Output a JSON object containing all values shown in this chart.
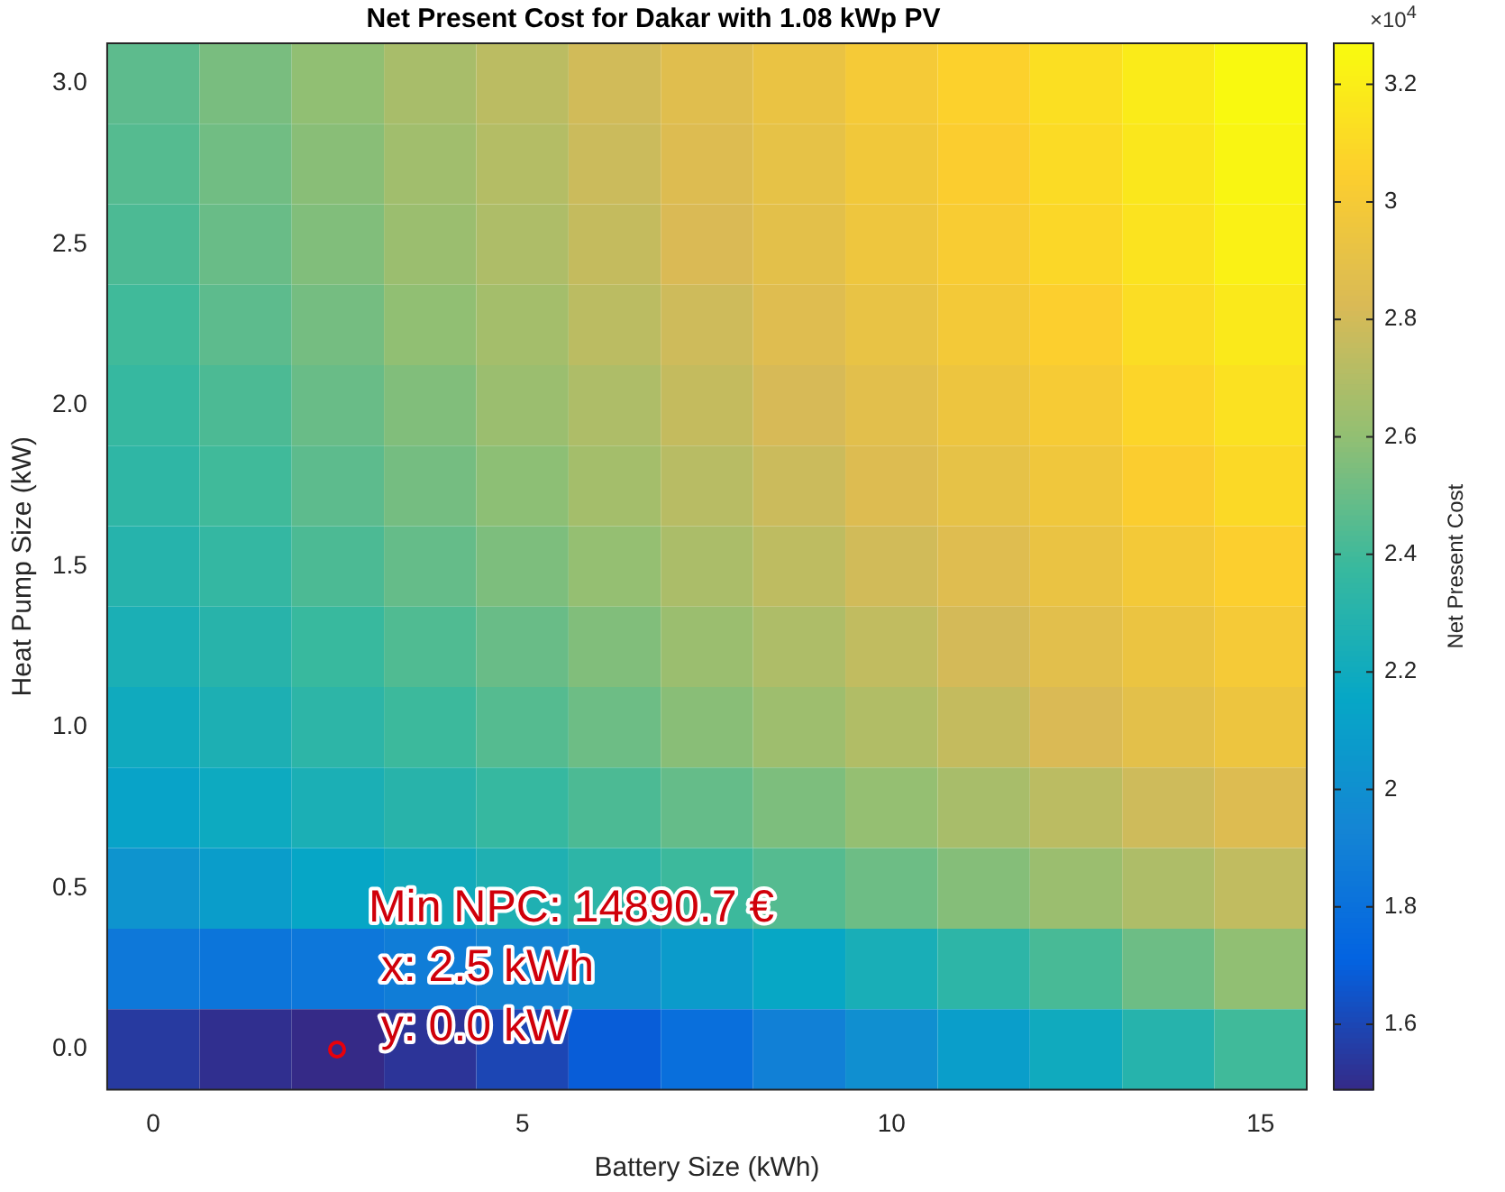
{
  "chart_data": {
    "type": "heatmap",
    "title": "Net Present Cost for Dakar with 1.08 kWp PV",
    "xlabel": "Battery Size (kWh)",
    "ylabel": "Heat Pump Size (kW)",
    "clabel": "Net Present Cost",
    "categories": [
      "0",
      null,
      null,
      null,
      "5",
      null,
      null,
      null,
      "10",
      null,
      null,
      null,
      "15"
    ],
    "y_categories": [
      "3.0",
      null,
      "2.5",
      null,
      "2.0",
      null,
      "1.5",
      null,
      "1.0",
      null,
      "0.5",
      null,
      "0.0"
    ],
    "cells": [
      [
        2.47,
        2.54,
        2.6,
        2.67,
        2.73,
        2.8,
        2.87,
        2.93,
        3.0,
        3.06,
        3.13,
        3.19,
        3.26
      ],
      [
        2.45,
        2.52,
        2.58,
        2.65,
        2.71,
        2.78,
        2.85,
        2.91,
        2.98,
        3.04,
        3.11,
        3.17,
        3.24
      ],
      [
        2.43,
        2.5,
        2.56,
        2.63,
        2.69,
        2.76,
        2.83,
        2.89,
        2.96,
        3.02,
        3.09,
        3.15,
        3.22
      ],
      [
        2.4,
        2.47,
        2.53,
        2.6,
        2.66,
        2.73,
        2.79,
        2.86,
        2.92,
        2.99,
        3.05,
        3.12,
        3.18
      ],
      [
        2.37,
        2.43,
        2.5,
        2.56,
        2.63,
        2.69,
        2.76,
        2.82,
        2.88,
        2.95,
        3.01,
        3.08,
        3.14
      ],
      [
        2.34,
        2.4,
        2.47,
        2.53,
        2.59,
        2.66,
        2.72,
        2.78,
        2.85,
        2.91,
        2.97,
        3.04,
        3.1
      ],
      [
        2.3,
        2.36,
        2.43,
        2.49,
        2.55,
        2.61,
        2.68,
        2.74,
        2.8,
        2.86,
        2.93,
        2.99,
        3.05
      ],
      [
        2.25,
        2.31,
        2.38,
        2.44,
        2.5,
        2.56,
        2.63,
        2.69,
        2.75,
        2.81,
        2.88,
        2.94,
        3.0
      ],
      [
        2.2,
        2.26,
        2.33,
        2.39,
        2.45,
        2.51,
        2.58,
        2.64,
        2.7,
        2.76,
        2.83,
        2.89,
        2.95
      ],
      [
        2.13,
        2.19,
        2.25,
        2.31,
        2.37,
        2.43,
        2.49,
        2.55,
        2.61,
        2.67,
        2.73,
        2.79,
        2.85
      ],
      [
        2.03,
        2.09,
        2.15,
        2.21,
        2.27,
        2.33,
        2.39,
        2.45,
        2.51,
        2.57,
        2.63,
        2.69,
        2.75
      ],
      [
        1.85,
        1.83,
        1.84,
        1.88,
        1.93,
        2.0,
        2.08,
        2.16,
        2.24,
        2.33,
        2.42,
        2.51,
        2.6
      ],
      [
        1.55,
        1.51,
        1.49,
        1.53,
        1.6,
        1.69,
        1.79,
        1.9,
        2.0,
        2.1,
        2.2,
        2.3,
        2.4
      ]
    ],
    "clim": [
      1.489,
      3.27
    ],
    "cticks": [
      1.6,
      1.8,
      2,
      2.2,
      2.4,
      2.6,
      2.8,
      3,
      3.2
    ],
    "annotations": [
      "Min NPC: 14890.7 €",
      " x: 2.5 kWh",
      " y: 0.0 kW",
      "×10$^{4}$"
    ]
  }
}
